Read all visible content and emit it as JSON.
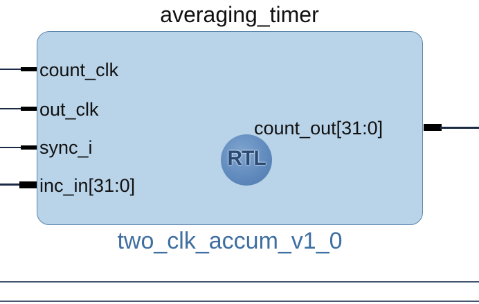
{
  "diagram": {
    "instance_name": "averaging_timer",
    "module_name": "two_clk_accum_v1_0",
    "badge_text": "RTL",
    "input_ports": [
      {
        "name": "count_clk",
        "bus": false
      },
      {
        "name": "out_clk",
        "bus": false
      },
      {
        "name": "sync_i",
        "bus": false
      },
      {
        "name": "inc_in[31:0]",
        "bus": true
      }
    ],
    "output_ports": [
      {
        "name": "count_out[31:0]",
        "bus": true
      }
    ]
  },
  "colors": {
    "block_fill": "#b9d3e8",
    "block_border": "#5b86ab",
    "module_name_text": "#3f6fa0",
    "wire": "#1b2a44",
    "badge": "#5f89bc"
  }
}
